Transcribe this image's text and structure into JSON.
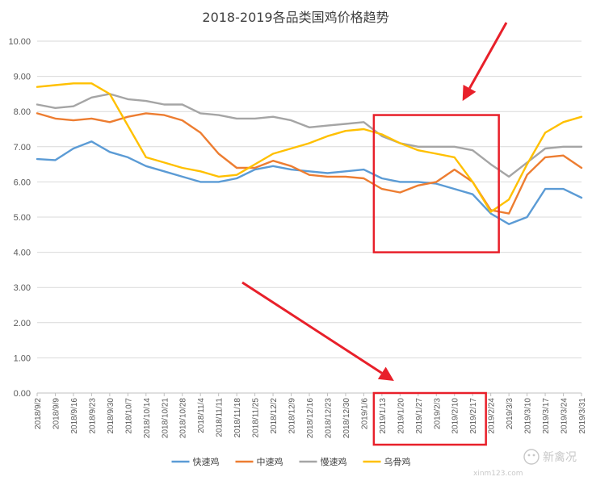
{
  "chart_data": {
    "type": "line",
    "title": "2018-2019各品类国鸡价格趋势",
    "ylim": [
      0,
      10
    ],
    "ytick_labels": [
      "0.00",
      "1.00",
      "2.00",
      "3.00",
      "4.00",
      "5.00",
      "6.00",
      "7.00",
      "8.00",
      "9.00",
      "10.00"
    ],
    "categories": [
      "2018/9/2",
      "2018/9/9",
      "2018/9/16",
      "2018/9/23",
      "2018/9/30",
      "2018/10/7",
      "2018/10/14",
      "2018/10/21",
      "2018/10/28",
      "2018/11/4",
      "2018/11/11",
      "2018/11/18",
      "2018/11/25",
      "2018/12/2",
      "2018/12/9",
      "2018/12/16",
      "2018/12/23",
      "2018/12/30",
      "2019/1/6",
      "2019/1/13",
      "2019/1/20",
      "2019/1/27",
      "2019/2/3",
      "2019/2/10",
      "2019/2/17",
      "2019/2/24",
      "2019/3/3",
      "2019/3/10",
      "2019/3/17",
      "2019/3/24",
      "2019/3/31"
    ],
    "grid": "horizontal",
    "legend_position": "bottom",
    "series": [
      {
        "name": "快速鸡",
        "color": "#5B9BD5",
        "values": [
          6.65,
          6.62,
          6.95,
          7.15,
          6.85,
          6.7,
          6.45,
          6.3,
          6.15,
          6.0,
          6.0,
          6.1,
          6.35,
          6.45,
          6.35,
          6.3,
          6.25,
          6.3,
          6.35,
          6.1,
          6.0,
          6.0,
          5.95,
          5.8,
          5.65,
          5.1,
          4.8,
          5.0,
          5.8,
          5.8,
          5.55
        ]
      },
      {
        "name": "中速鸡",
        "color": "#ED7D31",
        "values": [
          7.95,
          7.8,
          7.75,
          7.8,
          7.7,
          7.85,
          7.95,
          7.9,
          7.75,
          7.4,
          6.8,
          6.4,
          6.4,
          6.6,
          6.45,
          6.2,
          6.15,
          6.15,
          6.1,
          5.8,
          5.7,
          5.9,
          6.0,
          6.35,
          6.0,
          5.2,
          5.1,
          6.2,
          6.7,
          6.75,
          6.4
        ]
      },
      {
        "name": "慢速鸡",
        "color": "#A5A5A5",
        "values": [
          8.2,
          8.1,
          8.15,
          8.4,
          8.5,
          8.35,
          8.3,
          8.2,
          8.2,
          7.95,
          7.9,
          7.8,
          7.8,
          7.85,
          7.75,
          7.55,
          7.6,
          7.65,
          7.7,
          7.3,
          7.1,
          7.0,
          7.0,
          7.0,
          6.9,
          6.5,
          6.15,
          6.55,
          6.95,
          7.0,
          7.0
        ]
      },
      {
        "name": "乌骨鸡",
        "color": "#FFC000",
        "values": [
          8.7,
          8.75,
          8.8,
          8.8,
          8.5,
          7.6,
          6.7,
          6.55,
          6.4,
          6.3,
          6.15,
          6.2,
          6.5,
          6.8,
          6.95,
          7.1,
          7.3,
          7.45,
          7.5,
          7.35,
          7.1,
          6.9,
          6.8,
          6.7,
          6.0,
          5.15,
          5.5,
          6.5,
          7.4,
          7.7,
          7.85
        ]
      }
    ]
  },
  "watermark": {
    "text": "新禽况",
    "url": "xinm123.com"
  }
}
